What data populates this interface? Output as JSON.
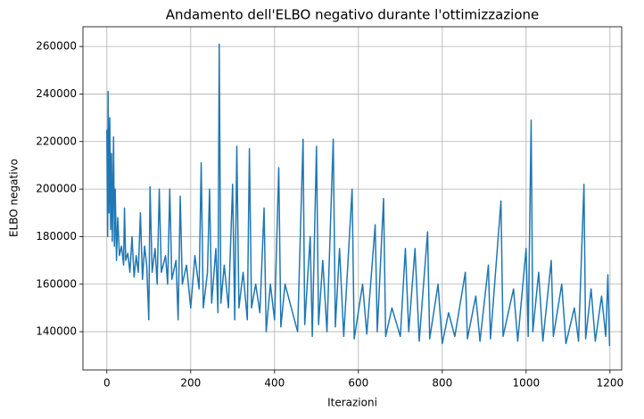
{
  "chart_data": {
    "type": "line",
    "title": "Andamento dell'ELBO negativo durante l'ottimizzazione",
    "xlabel": "Iterazioni",
    "ylabel": "ELBO negativo",
    "x": [
      0,
      2,
      3,
      5,
      7,
      9,
      11,
      13,
      16,
      18,
      20,
      23,
      26,
      30,
      35,
      40,
      42,
      45,
      50,
      55,
      60,
      65,
      70,
      75,
      80,
      85,
      90,
      95,
      100,
      103,
      108,
      115,
      120,
      125,
      130,
      140,
      145,
      150,
      155,
      165,
      170,
      175,
      180,
      190,
      200,
      210,
      220,
      225,
      230,
      240,
      245,
      250,
      260,
      265,
      268,
      272,
      280,
      290,
      300,
      305,
      310,
      315,
      325,
      335,
      340,
      345,
      355,
      365,
      375,
      380,
      390,
      400,
      410,
      415,
      425,
      440,
      455,
      468,
      472,
      485,
      490,
      500,
      505,
      515,
      525,
      540,
      545,
      555,
      565,
      585,
      590,
      610,
      620,
      640,
      645,
      660,
      665,
      680,
      700,
      712,
      720,
      735,
      745,
      765,
      770,
      790,
      800,
      815,
      830,
      855,
      860,
      880,
      890,
      910,
      915,
      940,
      945,
      970,
      980,
      1000,
      1005,
      1012,
      1016,
      1030,
      1040,
      1060,
      1065,
      1085,
      1095,
      1115,
      1125,
      1138,
      1142,
      1155,
      1165,
      1180,
      1190,
      1195,
      1199
    ],
    "series": [
      {
        "name": "ELBO negativo",
        "color": "#1f77b4",
        "values": [
          225000,
          180000,
          241000,
          190000,
          230000,
          183000,
          215000,
          178000,
          222000,
          176000,
          200000,
          170000,
          188000,
          172000,
          176000,
          168000,
          192000,
          170000,
          173000,
          165000,
          180000,
          163000,
          172000,
          165000,
          190000,
          162000,
          176000,
          168000,
          145000,
          201000,
          165000,
          175000,
          160000,
          200000,
          165000,
          172000,
          160000,
          200000,
          162000,
          170000,
          145000,
          197000,
          160000,
          168000,
          150000,
          172000,
          158000,
          211000,
          150000,
          165000,
          200000,
          152000,
          175000,
          148000,
          261000,
          152000,
          168000,
          150000,
          202000,
          145000,
          218000,
          150000,
          165000,
          145000,
          217000,
          150000,
          160000,
          148000,
          192000,
          140000,
          160000,
          145000,
          209000,
          142000,
          160000,
          150000,
          140000,
          221000,
          143000,
          180000,
          138000,
          218000,
          143000,
          170000,
          140000,
          221000,
          142000,
          175000,
          138000,
          200000,
          137000,
          160000,
          139000,
          185000,
          140000,
          196000,
          138000,
          150000,
          138000,
          175000,
          140000,
          175000,
          136000,
          182000,
          137000,
          160000,
          135000,
          148000,
          138000,
          165000,
          137000,
          155000,
          136000,
          168000,
          137000,
          195000,
          138000,
          158000,
          136000,
          175000,
          138000,
          229000,
          140000,
          165000,
          136000,
          170000,
          138000,
          160000,
          135000,
          150000,
          136000,
          202000,
          137000,
          158000,
          136000,
          155000,
          138000,
          164000,
          134000
        ]
      }
    ],
    "xlim": [
      -57,
      1228
    ],
    "ylim": [
      123900,
      268300
    ],
    "xticks": [
      0,
      200,
      400,
      600,
      800,
      1000,
      1200
    ],
    "yticks": [
      140000,
      160000,
      180000,
      200000,
      220000,
      240000,
      260000
    ],
    "grid": true
  }
}
